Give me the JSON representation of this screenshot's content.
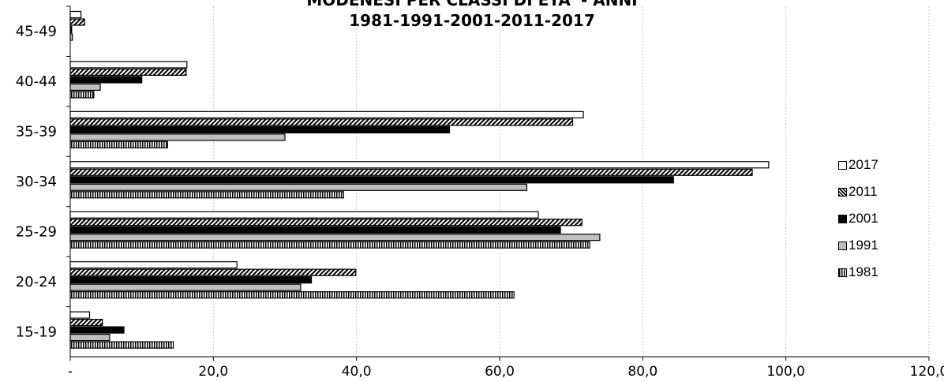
{
  "chart_data": {
    "type": "bar",
    "orientation": "horizontal",
    "title_lines": [
      "MODENESI PER CLASSI DI ETA' - ANNI",
      "1981-1991-2001-2011-2017"
    ],
    "categories": [
      "45-49",
      "40-44",
      "35-39",
      "30-34",
      "25-29",
      "20-24",
      "15-19"
    ],
    "series": [
      {
        "name": "2017",
        "fill": "#ffffff",
        "pattern": "solid-white",
        "values": [
          1.5,
          16.3,
          71.7,
          97.6,
          65.4,
          23.3,
          2.7
        ]
      },
      {
        "name": "2011",
        "fill": "#000000",
        "pattern": "diagonal-hatch",
        "values": [
          2.0,
          16.2,
          70.2,
          95.3,
          71.5,
          39.9,
          4.5
        ]
      },
      {
        "name": "2001",
        "fill": "#000000",
        "pattern": "solid-black",
        "values": [
          0.2,
          10.0,
          53.0,
          84.3,
          68.5,
          33.7,
          7.5
        ]
      },
      {
        "name": "1991",
        "fill": "#bfbfbf",
        "pattern": "solid-gray",
        "values": [
          0.3,
          4.2,
          30.0,
          63.8,
          74.0,
          32.2,
          5.5
        ]
      },
      {
        "name": "1981",
        "fill": "#ffffff",
        "pattern": "vertical-lines",
        "values": [
          0.0,
          3.3,
          13.6,
          38.2,
          72.6,
          62.0,
          14.4
        ]
      }
    ],
    "xlim": [
      0,
      120
    ],
    "x_ticks": [
      "-",
      "20,0",
      "40,0",
      "60,0",
      "80,0",
      "100,0",
      "120,0"
    ],
    "x_tick_values": [
      0,
      20,
      40,
      60,
      80,
      100,
      120
    ],
    "grid": "vertical-dotted",
    "legend_position": "right",
    "legend_order": [
      "2017",
      "2011",
      "2001",
      "1991",
      "1981"
    ]
  }
}
